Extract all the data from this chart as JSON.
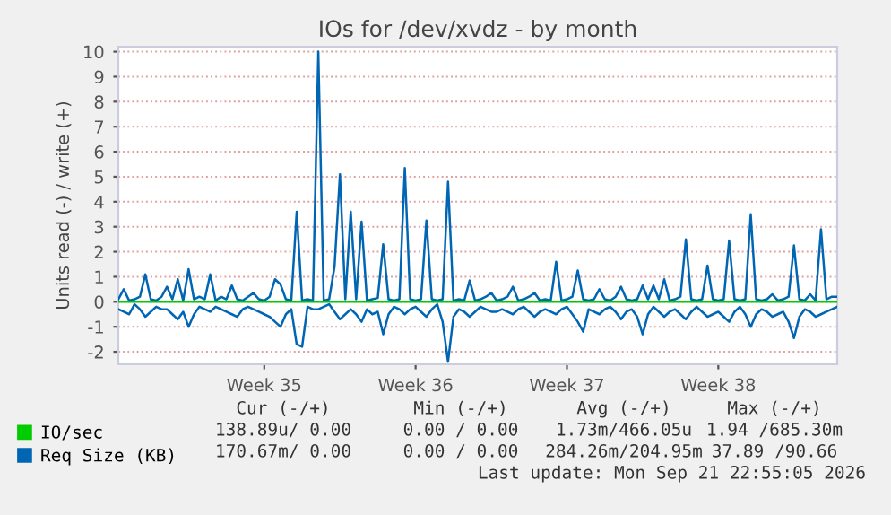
{
  "chart_data": {
    "type": "line",
    "title": "IOs for /dev/xvdz - by month",
    "ylabel": "Units read (-) / write (+)",
    "categories": [
      null,
      null,
      null,
      null,
      null,
      null,
      null,
      null,
      null,
      null,
      null,
      null,
      null,
      null,
      null,
      null,
      null,
      null,
      null,
      null,
      null,
      null,
      null,
      null,
      null,
      null,
      null,
      "Week 35",
      null,
      null,
      null,
      null,
      null,
      null,
      null,
      null,
      null,
      null,
      null,
      null,
      null,
      null,
      null,
      null,
      null,
      null,
      null,
      null,
      null,
      null,
      null,
      null,
      null,
      null,
      null,
      "Week 36",
      null,
      null,
      null,
      null,
      null,
      null,
      null,
      null,
      null,
      null,
      null,
      null,
      null,
      null,
      null,
      null,
      null,
      null,
      null,
      null,
      null,
      null,
      null,
      null,
      null,
      null,
      null,
      "Week 37",
      null,
      null,
      null,
      null,
      null,
      null,
      null,
      null,
      null,
      null,
      null,
      null,
      null,
      null,
      null,
      null,
      null,
      null,
      null,
      null,
      null,
      null,
      null,
      null,
      null,
      null,
      null,
      "Week 38",
      null,
      null,
      null,
      null,
      null,
      null,
      null,
      null,
      null,
      null,
      null,
      null,
      null,
      null,
      null,
      null,
      null,
      null,
      null,
      null,
      null,
      null
    ],
    "ylim": [
      -2.5,
      10.2
    ],
    "yticks": [
      -2,
      -1,
      0,
      1,
      2,
      3,
      4,
      5,
      6,
      7,
      8,
      9,
      10
    ],
    "grid": "y",
    "legend": "bottom left",
    "marker": "none",
    "line_style": "solid",
    "series": [
      {
        "name": "IO/sec",
        "color": "#00cc00",
        "values": [
          0,
          0,
          0,
          0,
          0,
          0,
          0,
          0,
          0,
          0,
          0,
          0,
          0,
          0,
          0,
          0,
          0,
          0,
          0,
          0,
          0,
          0,
          0,
          0,
          0,
          0,
          0,
          0,
          0,
          0,
          0,
          0,
          0,
          0,
          0,
          0,
          0,
          0,
          0,
          0,
          0,
          0,
          0,
          0,
          0,
          0,
          0,
          0,
          0,
          0,
          0,
          0,
          0,
          0,
          0,
          0,
          0,
          0,
          0,
          0,
          0,
          0,
          0,
          0,
          0,
          0,
          0,
          0,
          0,
          0,
          0,
          0,
          0,
          0,
          0,
          0,
          0,
          0,
          0,
          0,
          0,
          0,
          0,
          0,
          0,
          0,
          0,
          0,
          0,
          0,
          0,
          0,
          0,
          0,
          0,
          0,
          0,
          0,
          0,
          0,
          0,
          0,
          0,
          0,
          0,
          0,
          0,
          0,
          0,
          0,
          0,
          0,
          0,
          0,
          0,
          0,
          0,
          0,
          0,
          0,
          0,
          0,
          0,
          0,
          0,
          0,
          0,
          0,
          0,
          0,
          0,
          0,
          0,
          0
        ]
      },
      {
        "name": "Req Size (KB)",
        "color": "#0066b3",
        "values": [
          0.1,
          0.5,
          0.05,
          0.1,
          0.2,
          1.1,
          0.1,
          0.05,
          0.2,
          0.6,
          0.1,
          0.9,
          0.05,
          1.3,
          0.1,
          0.2,
          0.1,
          1.1,
          0.05,
          0.2,
          0.1,
          0.65,
          0.1,
          0.05,
          0.2,
          0.35,
          0.1,
          0.05,
          0.2,
          0.9,
          0.7,
          0.1,
          0.05,
          3.6,
          0.05,
          0.1,
          0.05,
          10,
          0.05,
          0.1,
          1.4,
          5.1,
          0.1,
          3.6,
          0.1,
          3.2,
          0.05,
          0.1,
          0.15,
          2.3,
          0.1,
          0.05,
          0.1,
          5.35,
          0.1,
          0.05,
          0.1,
          3.25,
          0.1,
          0.05,
          0.1,
          4.8,
          0.05,
          0.1,
          0.05,
          0.85,
          0.05,
          0.1,
          0.2,
          0.35,
          0.05,
          0.1,
          0.2,
          0.6,
          0.05,
          0.1,
          0.2,
          0.35,
          0.05,
          0.1,
          0.05,
          1.6,
          0.05,
          0.1,
          0.2,
          1.25,
          0.1,
          0.05,
          0.1,
          0.5,
          0.1,
          0.05,
          0.2,
          0.6,
          0.1,
          0.05,
          0.1,
          0.65,
          0.1,
          0.65,
          0.1,
          0.9,
          0.05,
          0.1,
          0.2,
          2.5,
          0.1,
          0.05,
          0.1,
          1.45,
          0.1,
          0.05,
          0.1,
          2.45,
          0.1,
          0.05,
          0.1,
          3.5,
          0.1,
          0.05,
          0.1,
          0.3,
          0.05,
          0.1,
          0.2,
          2.25,
          0.1,
          0.05,
          0.3,
          0.05,
          2.9,
          0.1,
          0.2,
          0.2
        ]
      },
      {
        "color": "#0066b3",
        "values": [
          -0.3,
          -0.4,
          -0.5,
          -0.1,
          -0.3,
          -0.6,
          -0.4,
          -0.2,
          -0.3,
          -0.3,
          -0.5,
          -0.7,
          -0.4,
          -1.0,
          -0.5,
          -0.2,
          -0.3,
          -0.4,
          -0.2,
          -0.3,
          -0.4,
          -0.5,
          -0.6,
          -0.3,
          -0.2,
          -0.3,
          -0.4,
          -0.5,
          -0.6,
          -0.8,
          -1.0,
          -0.5,
          -0.3,
          -1.7,
          -1.8,
          -0.2,
          -0.3,
          -0.3,
          -0.2,
          -0.1,
          -0.4,
          -0.7,
          -0.5,
          -0.3,
          -0.5,
          -0.8,
          -0.3,
          -0.5,
          -0.4,
          -1.3,
          -0.5,
          -0.2,
          -0.3,
          -0.5,
          -0.3,
          -0.2,
          -0.4,
          -0.6,
          -0.3,
          -0.1,
          -0.8,
          -2.4,
          -0.6,
          -0.3,
          -0.4,
          -0.6,
          -0.4,
          -0.2,
          -0.3,
          -0.4,
          -0.4,
          -0.3,
          -0.4,
          -0.5,
          -0.3,
          -0.2,
          -0.4,
          -0.6,
          -0.4,
          -0.3,
          -0.4,
          -0.5,
          -0.3,
          -0.2,
          -0.5,
          -0.8,
          -1.2,
          -0.3,
          -0.4,
          -0.5,
          -0.3,
          -0.2,
          -0.4,
          -0.7,
          -0.4,
          -0.3,
          -0.6,
          -1.3,
          -0.5,
          -0.2,
          -0.4,
          -0.6,
          -0.4,
          -0.3,
          -0.5,
          -0.7,
          -0.4,
          -0.2,
          -0.4,
          -0.6,
          -0.5,
          -0.4,
          -0.6,
          -0.8,
          -0.4,
          -0.2,
          -0.5,
          -1.0,
          -0.5,
          -0.3,
          -0.4,
          -0.6,
          -0.5,
          -0.4,
          -0.8,
          -1.45,
          -0.6,
          -0.3,
          -0.4,
          -0.6,
          -0.5,
          -0.4,
          -0.3,
          -0.2
        ]
      }
    ],
    "annotations": [
      "Cur (-/+)",
      "Min (-/+)",
      "Avg (-/+)",
      "Max (-/+)",
      "138.89u/ 0.00",
      "0.00 / 0.00",
      "1.73m/466.05u",
      "1.94 /685.30m",
      "170.67m/ 0.00",
      "0.00 / 0.00",
      "284.26m/204.95m",
      "37.89 /90.66",
      "Last update: Mon Sep 21 22:55:05 2026"
    ]
  }
}
